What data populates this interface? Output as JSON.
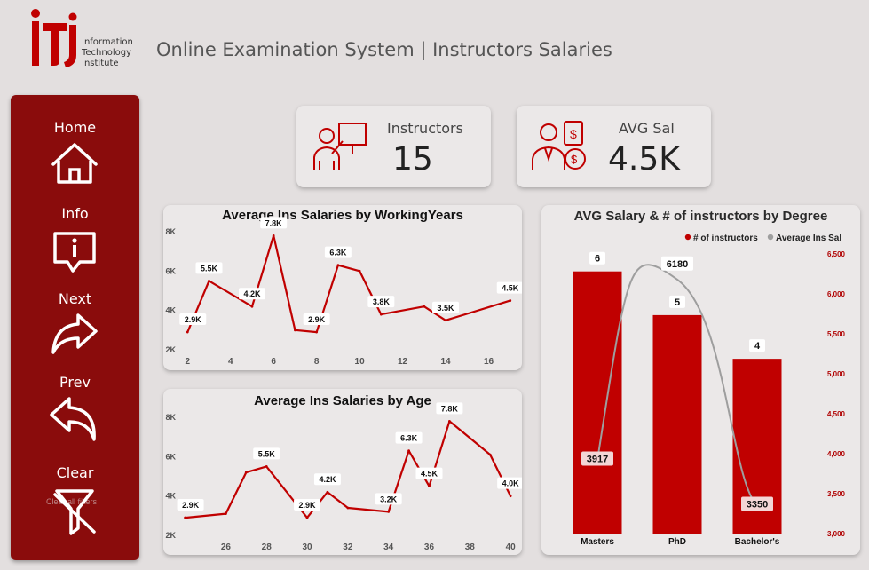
{
  "header": {
    "logo_lines": [
      "Information",
      "Technology",
      "Institute"
    ],
    "title": "Online Examination System | Instructors Salaries"
  },
  "sidebar": {
    "items": [
      {
        "label": "Home",
        "icon": "home-icon"
      },
      {
        "label": "Info",
        "icon": "info-chat-icon"
      },
      {
        "label": "Next",
        "icon": "arrow-forward-icon"
      },
      {
        "label": "Prev",
        "icon": "arrow-back-icon"
      },
      {
        "label": "Clear",
        "icon": "clear-filter-icon"
      }
    ],
    "clear_hint": "Clear all filters"
  },
  "kpis": [
    {
      "label": "Instructors",
      "value": "15",
      "icon": "instructor-presentation-icon"
    },
    {
      "label": "AVG Sal",
      "value": "4.5K",
      "icon": "salary-person-icon"
    }
  ],
  "colors": {
    "accent": "#c00000",
    "sidebar": "#8a0c0c",
    "line_gray": "#9e9e9e"
  },
  "chart_data": [
    {
      "type": "line",
      "title": "Average Ins Salaries by WorkingYears",
      "x": [
        2,
        3,
        5,
        6,
        7,
        8,
        9,
        10,
        11,
        13,
        14,
        17
      ],
      "y": [
        2900,
        5500,
        4200,
        7800,
        3000,
        2900,
        6300,
        6000,
        3800,
        4200,
        3500,
        4500
      ],
      "point_labels": {
        "0": "2.9K",
        "1": "5.5K",
        "2": "4.2K",
        "3": "7.8K",
        "5": "2.9K",
        "6": "6.3K",
        "8": "3.8K",
        "10": "3.5K",
        "11": "4.5K"
      },
      "x_ticks": [
        2,
        4,
        6,
        8,
        10,
        12,
        14,
        16
      ],
      "y_ticks": [
        {
          "v": 2000,
          "label": "2K"
        },
        {
          "v": 4000,
          "label": "4K"
        },
        {
          "v": 6000,
          "label": "6K"
        },
        {
          "v": 8000,
          "label": "8K"
        }
      ],
      "xlim": [
        1.7,
        17.3
      ],
      "ylim": [
        2000,
        8000
      ]
    },
    {
      "type": "line",
      "title": "Average Ins Salaries by Age",
      "x": [
        24,
        26,
        27,
        28,
        30,
        31,
        32,
        34,
        35,
        36,
        37,
        39,
        40
      ],
      "y": [
        2900,
        3100,
        5200,
        5500,
        2900,
        4200,
        3400,
        3200,
        6300,
        4500,
        7800,
        6100,
        4000
      ],
      "point_labels": {
        "0": "2.9K",
        "3": "5.5K",
        "4": "2.9K",
        "5": "4.2K",
        "7": "3.2K",
        "8": "6.3K",
        "9": "4.5K",
        "10": "7.8K",
        "12": "4.0K"
      },
      "x_ticks": [
        26,
        28,
        30,
        32,
        34,
        36,
        38,
        40
      ],
      "y_ticks": [
        {
          "v": 2000,
          "label": "2K"
        },
        {
          "v": 4000,
          "label": "4K"
        },
        {
          "v": 6000,
          "label": "6K"
        },
        {
          "v": 8000,
          "label": "8K"
        }
      ],
      "xlim": [
        23.8,
        40.3
      ],
      "ylim": [
        2000,
        8000
      ]
    },
    {
      "type": "bar",
      "title": "AVG Salary & # of instructors by Degree",
      "categories": [
        "Masters",
        "PhD",
        "Bachelor's"
      ],
      "series": [
        {
          "name": "# of instructors",
          "values": [
            6,
            5,
            4
          ],
          "kind": "bar"
        },
        {
          "name": "Average Ins Sal",
          "values": [
            3917,
            6180,
            3350
          ],
          "kind": "line"
        }
      ],
      "bar_ylim": [
        0,
        6.4
      ],
      "y2_ticks": [
        "3,000",
        "3,500",
        "4,000",
        "4,500",
        "5,000",
        "5,500",
        "6,000",
        "6,500"
      ],
      "y2lim": [
        3000,
        6500
      ],
      "legend": "top-right"
    }
  ]
}
